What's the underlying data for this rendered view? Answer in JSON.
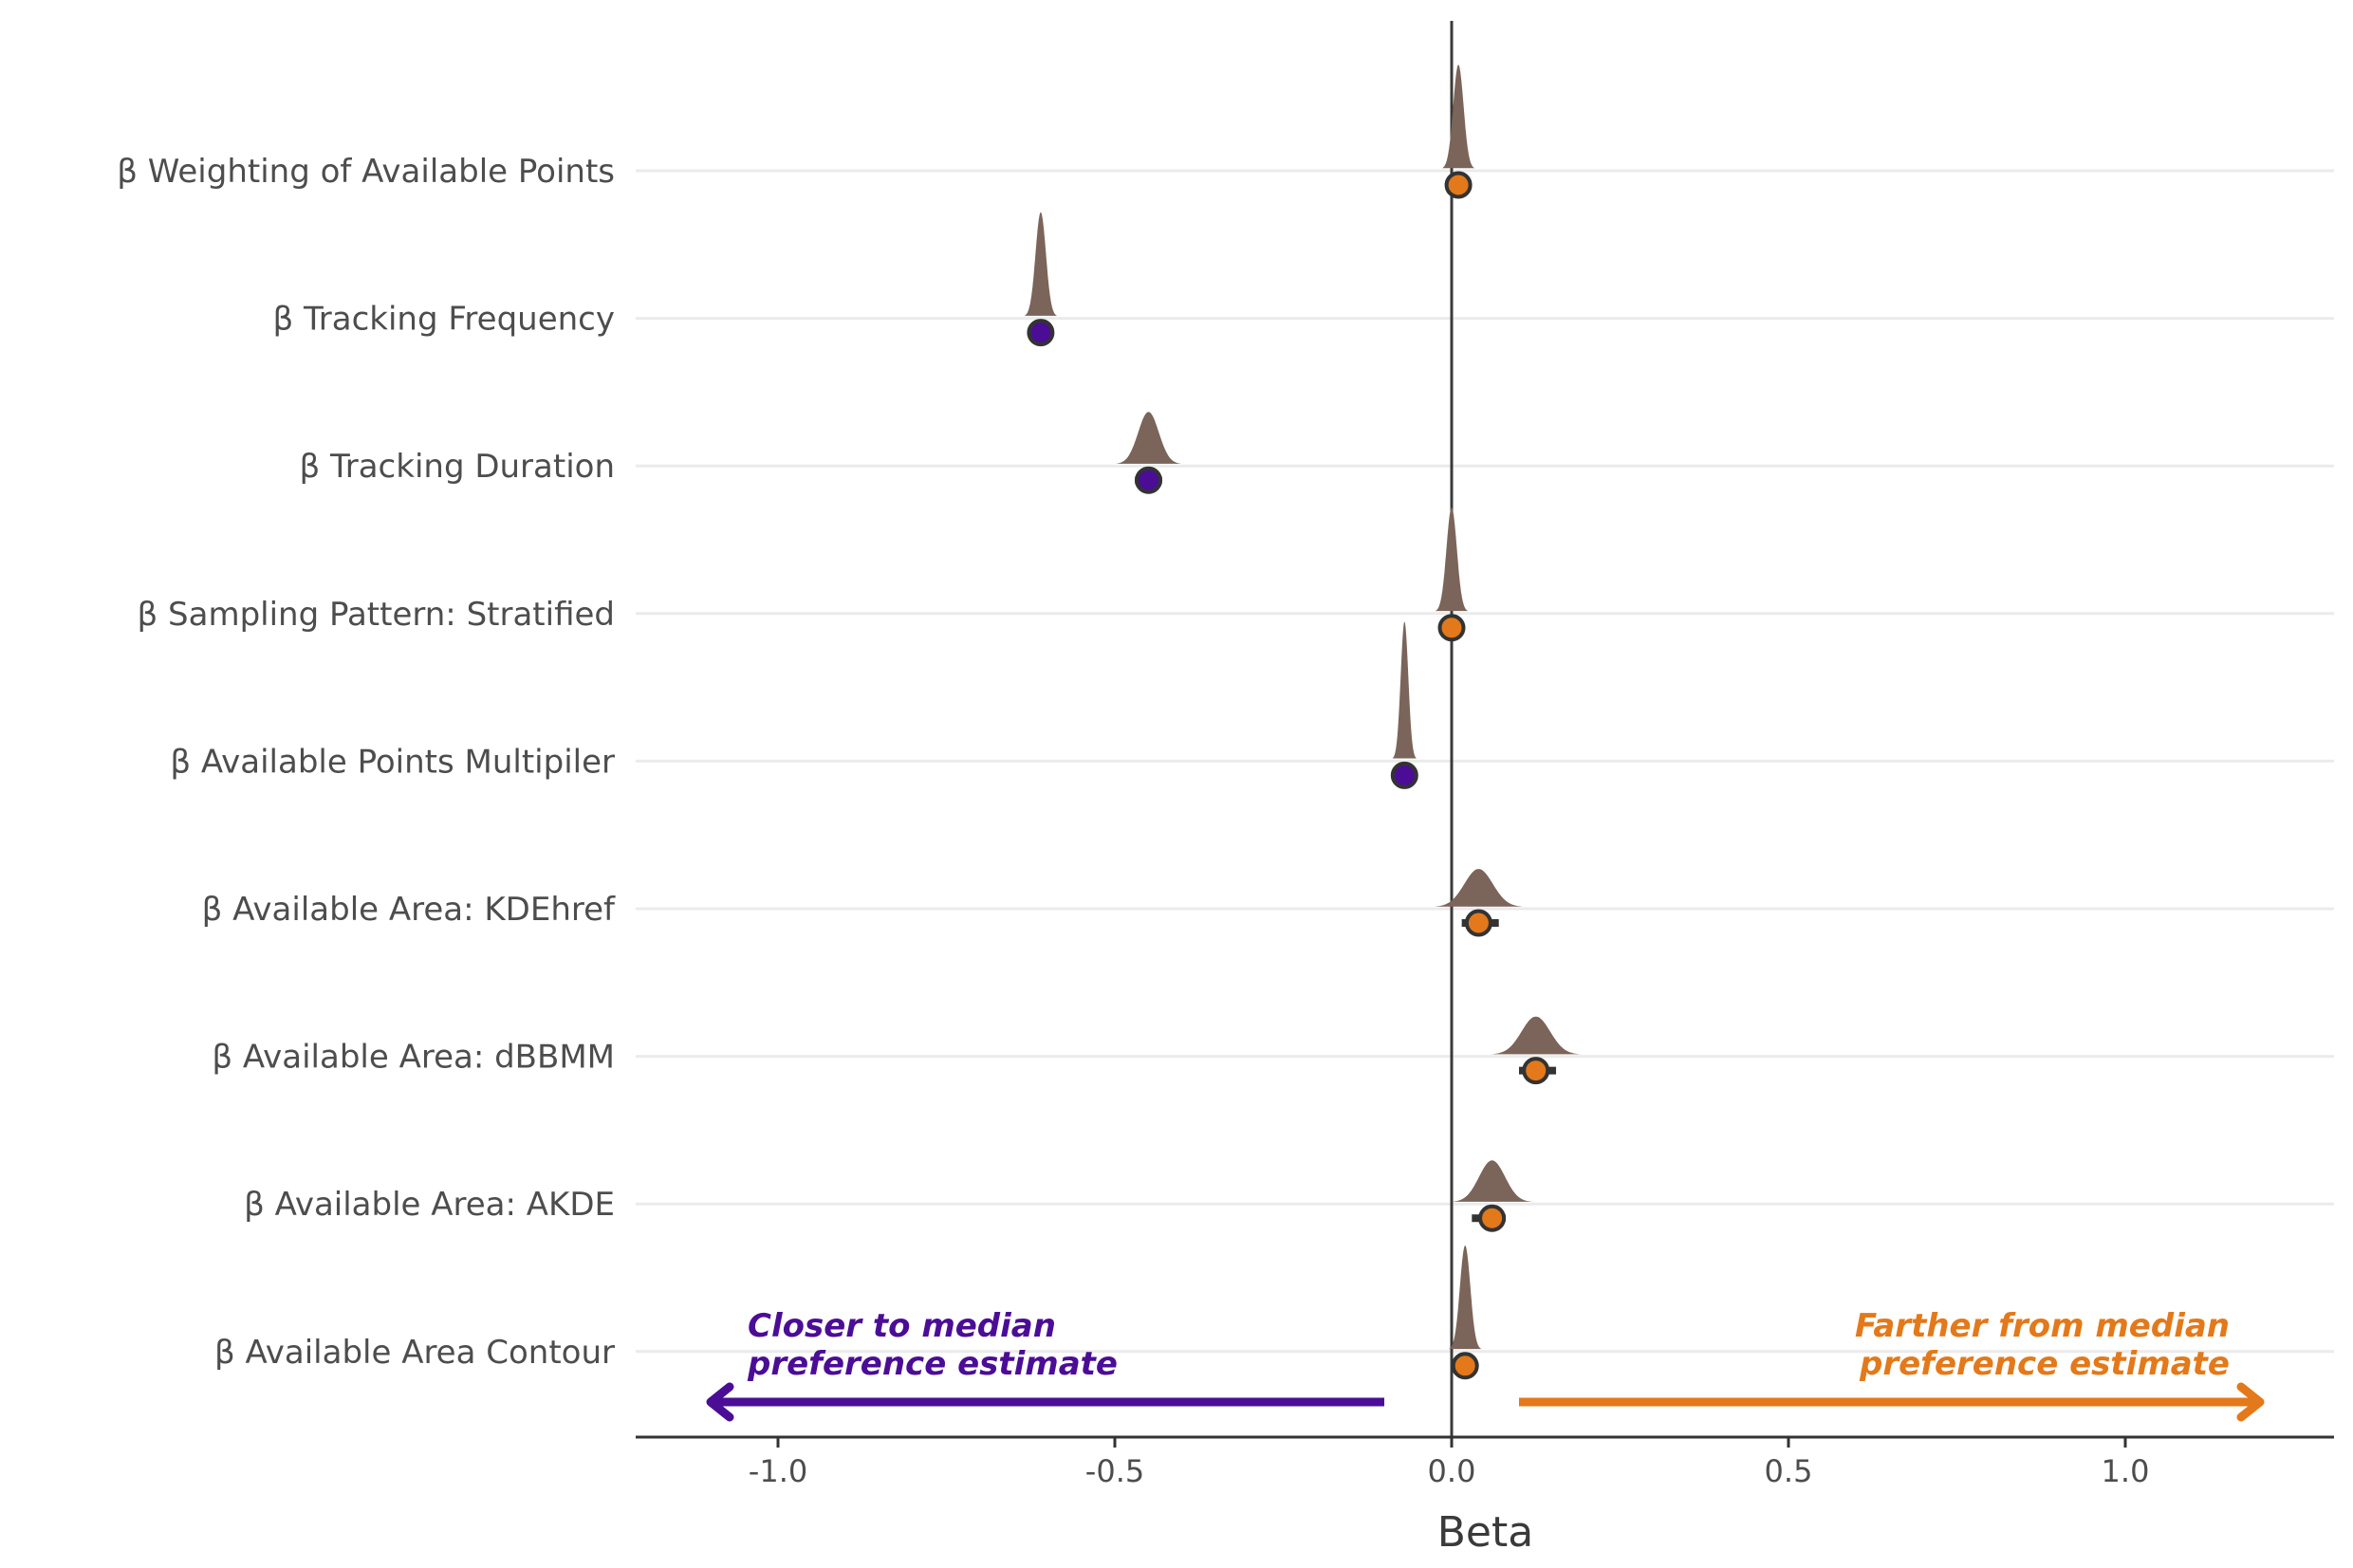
{
  "chart_data": {
    "type": "scatter",
    "subtype": "posterior density with point estimate",
    "categories": [
      "β Weighting of Available Points",
      "β Tracking Frequency",
      "β Tracking Duration",
      "β Sampling Pattern: Stratified",
      "β Available Points Multipiler",
      "β Available Area: KDEhref",
      "β Available Area: dBBMM",
      "β Available Area: AKDE",
      "β Available Area Contour"
    ],
    "estimates": [
      0.01,
      -0.61,
      -0.45,
      0.0,
      -0.07,
      0.04,
      0.125,
      0.06,
      0.02
    ],
    "interval_low": [
      0.0,
      -0.62,
      -0.47,
      -0.01,
      -0.075,
      0.015,
      0.1,
      0.03,
      0.01
    ],
    "interval_high": [
      0.02,
      -0.6,
      -0.43,
      0.01,
      -0.065,
      0.07,
      0.155,
      0.08,
      0.03
    ],
    "direction": [
      "farther",
      "closer",
      "closer",
      "farther",
      "closer",
      "farther",
      "farther",
      "farther",
      "farther"
    ],
    "xlabel": "Beta",
    "ylabel": "",
    "xlim": [
      -1.22,
      1.31
    ],
    "xticks": [
      -1.0,
      -0.5,
      0.0,
      0.5,
      1.0
    ],
    "xtick_labels": [
      "-1.0",
      "-0.5",
      "0.0",
      "0.5",
      "1.0"
    ],
    "grid": "horizontal",
    "reference_line": 0.0,
    "annotations": {
      "closer_line1": "Closer to median",
      "closer_line2": "preference estimate",
      "farther_line1": "Farther from median",
      "farther_line2": "preference estimate"
    },
    "colors": {
      "closer": "#4b0d96",
      "farther": "#e3791a",
      "density": "#7b6459",
      "grid": "#ebebeb",
      "axis": "#333333",
      "point_stroke": "#333333"
    }
  }
}
